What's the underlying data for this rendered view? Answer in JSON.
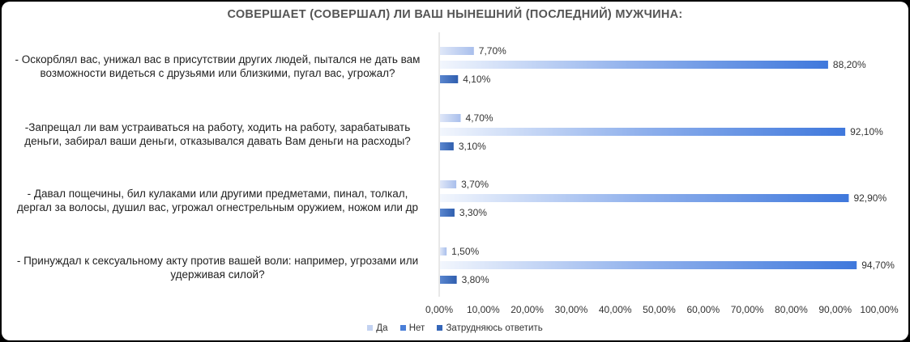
{
  "chart_data": {
    "type": "bar",
    "orientation": "horizontal",
    "title": "СОВЕРШАЕТ (СОВЕРШАЛ) ЛИ ВАШ НЫНЕШНИЙ (ПОСЛЕДНИЙ) МУЖЧИНА:",
    "categories": [
      [
        "- Оскорблял вас, унижал вас в присутствии других людей, пытался не дать вам",
        "возможности видеться с друзьями или близкими, пугал вас, угрожал?"
      ],
      [
        "-Запрещал ли вам устраиваться на работу, ходить на работу, зарабатывать",
        "деньги, забирал ваши деньги, отказывался давать Вам деньги на расходы?"
      ],
      [
        "- Давал пощечины, бил кулаками или другими предметами, пинал, толкал,",
        "дергал за волосы, душил вас, угрожал огнестрельным оружием, ножом или др"
      ],
      [
        "- Принуждал к сексуальному акту против вашей воли: например, угрозами или",
        "удерживая силой?"
      ]
    ],
    "series": [
      {
        "name": "Да",
        "values": [
          7.7,
          4.7,
          3.7,
          1.5
        ],
        "labels": [
          "7,70%",
          "4,70%",
          "3,70%",
          "1,50%"
        ],
        "color": "#b4c7ee"
      },
      {
        "name": "Нет",
        "values": [
          88.2,
          92.1,
          92.9,
          94.7
        ],
        "labels": [
          "88,20%",
          "92,10%",
          "92,90%",
          "94,70%"
        ],
        "color": "#4a7fd8"
      },
      {
        "name": "Затрудняюсь ответить",
        "values": [
          4.1,
          3.1,
          3.3,
          3.8
        ],
        "labels": [
          "4,10%",
          "3,10%",
          "3,30%",
          "3,80%"
        ],
        "color": "#3566b8"
      }
    ],
    "xlim": [
      0,
      100
    ],
    "xticks": [
      "0,00%",
      "10,00%",
      "20,00%",
      "30,00%",
      "40,00%",
      "50,00%",
      "60,00%",
      "70,00%",
      "80,00%",
      "90,00%",
      "100,00%"
    ],
    "legend_position": "bottom",
    "grid": false
  }
}
